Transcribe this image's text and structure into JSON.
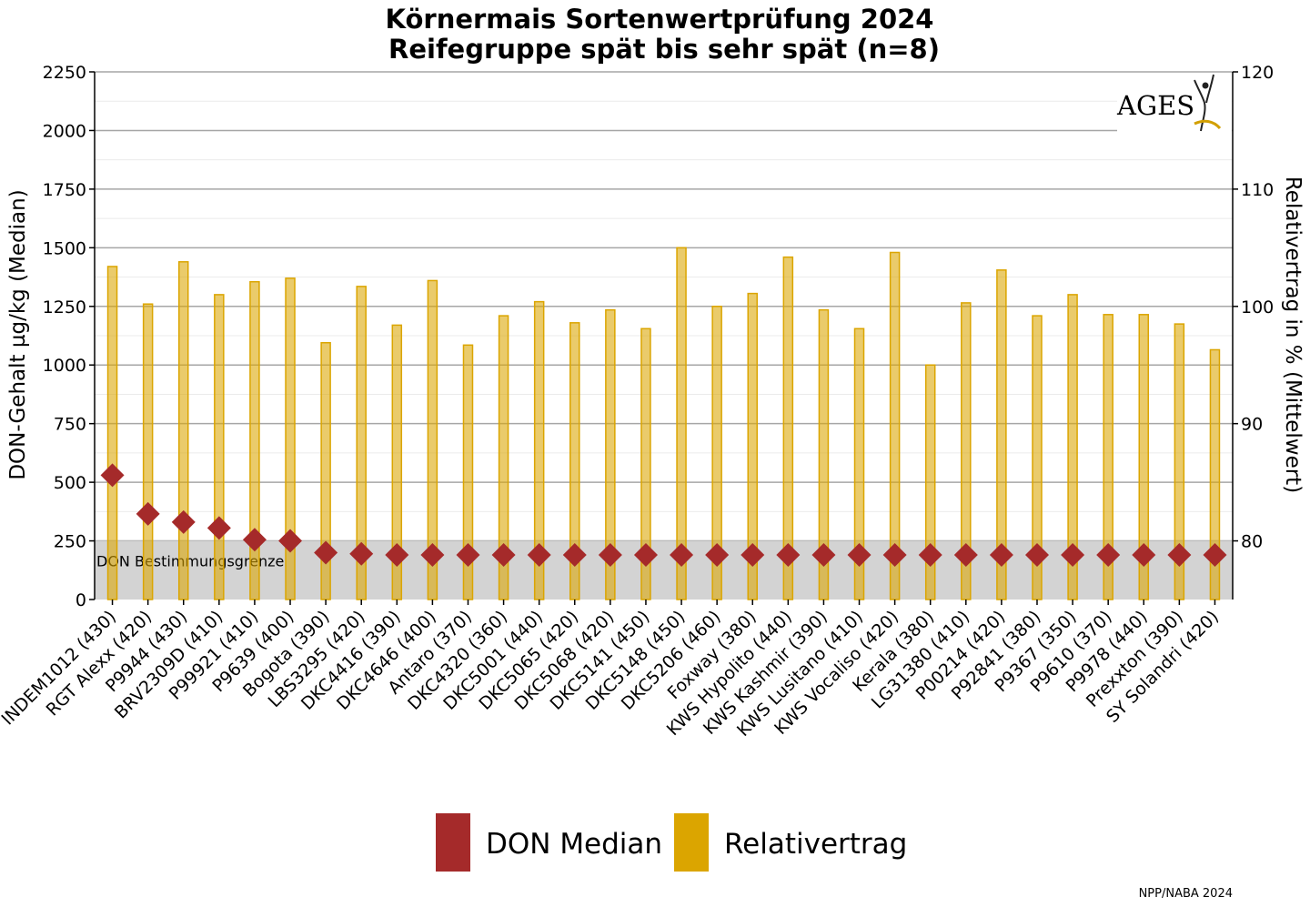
{
  "chart_data": {
    "type": "bar",
    "title": [
      "Körnermais Sortenwertprüfung 2024",
      "Reifegruppe spät bis sehr spät (n=8)"
    ],
    "ylabel_left": "DON-Gehalt µg/kg (Median)",
    "ylabel_right": "Relativertrag in % (Mittelwert)",
    "ylim_left": [
      0,
      2250
    ],
    "ylim_right": [
      75,
      120
    ],
    "yticks_left": [
      "0",
      "250",
      "500",
      "750",
      "1000",
      "1250",
      "1500",
      "1750",
      "2000",
      "2250"
    ],
    "yticks_right": [
      "80",
      "90",
      "100",
      "110",
      "120"
    ],
    "grid": true,
    "categories": [
      "INDEM1012 (430)",
      "RGT Alexx (420)",
      "P9944 (430)",
      "BRV2309D (410)",
      "P99921 (410)",
      "P9639 (400)",
      "Bogota (390)",
      "LBS3295 (420)",
      "DKC4416 (390)",
      "DKC4646 (400)",
      "Antaro (370)",
      "DKC4320 (360)",
      "DKC5001 (440)",
      "DKC5065 (420)",
      "DKC5068 (420)",
      "DKC5141 (450)",
      "DKC5148 (450)",
      "DKC5206 (460)",
      "Foxway (380)",
      "KWS Hypolito (440)",
      "KWS Kashmir (390)",
      "KWS Lusitano (410)",
      "KWS Vocaliso (420)",
      "Kerala (380)",
      "LG31380 (410)",
      "P00214 (420)",
      "P92841 (380)",
      "P9367 (350)",
      "P9610 (370)",
      "P9978 (440)",
      "Prexxton (390)",
      "SY Solandri (420)"
    ],
    "series": [
      {
        "name": "Relativertrag",
        "type": "bar",
        "axis": "right",
        "color": "#dba500",
        "values": [
          103.4,
          100.2,
          103.8,
          101.0,
          102.1,
          102.4,
          96.9,
          101.7,
          98.4,
          102.2,
          96.7,
          99.2,
          100.4,
          98.6,
          99.7,
          98.1,
          105.0,
          100.0,
          101.1,
          104.2,
          99.7,
          98.1,
          104.6,
          95.0,
          100.3,
          103.1,
          99.2,
          101.0,
          99.3,
          99.3,
          98.5,
          96.3
        ]
      },
      {
        "name": "DON Median",
        "type": "scatter",
        "axis": "left",
        "color": "#a52a2a",
        "values": [
          530,
          365,
          330,
          305,
          255,
          250,
          200,
          195,
          190,
          190,
          190,
          190,
          190,
          190,
          190,
          190,
          190,
          190,
          190,
          190,
          190,
          190,
          190,
          190,
          190,
          190,
          190,
          190,
          190,
          190,
          190,
          190
        ]
      }
    ],
    "annotations": [
      {
        "label": "DON Bestimmungsgrenze",
        "y_from": 0,
        "y_to": 250,
        "axis": "left",
        "color": "#d3d3d3"
      }
    ],
    "legend": {
      "position": "bottom",
      "items": [
        {
          "label": "DON Median",
          "color": "#a52a2a"
        },
        {
          "label": "Relativertrag",
          "color": "#dba500"
        }
      ]
    }
  },
  "logo": {
    "text": "AGES"
  },
  "footer": {
    "text": "NPP/NABA 2024"
  }
}
